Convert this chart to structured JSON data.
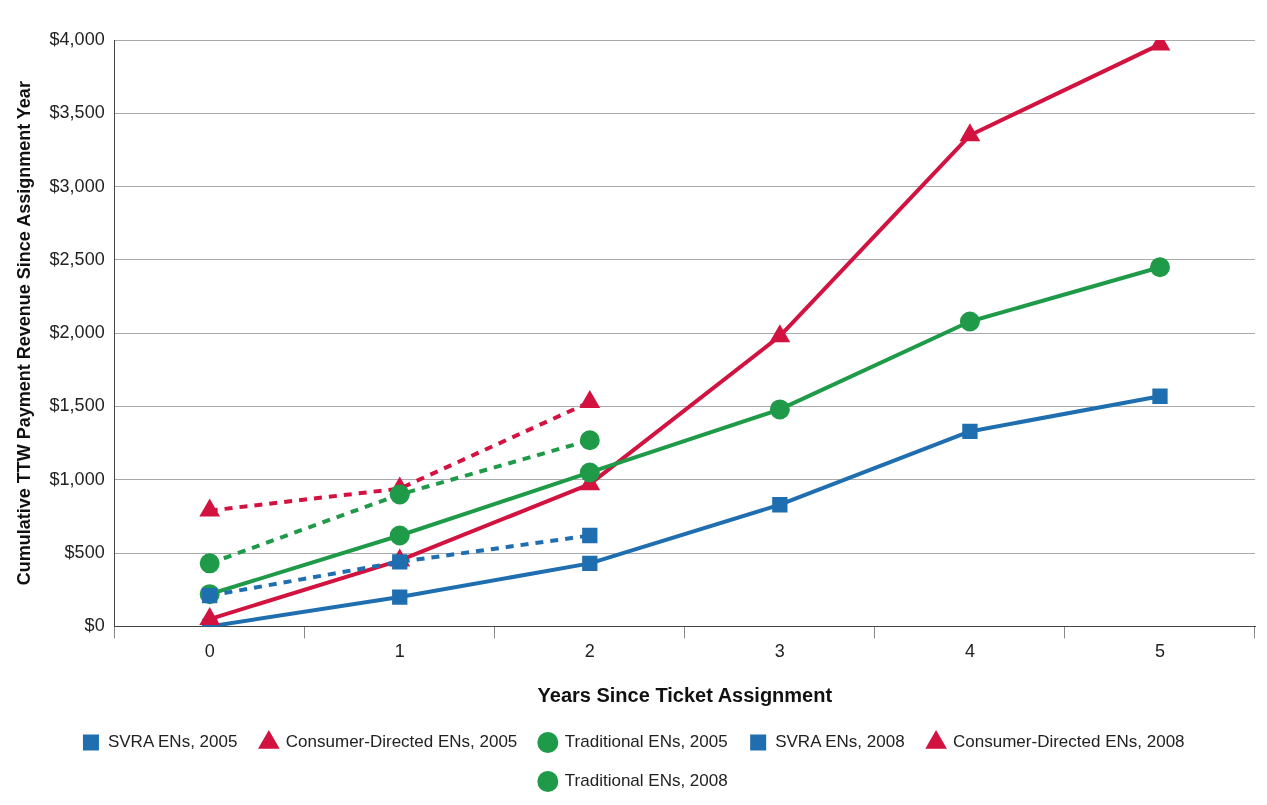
{
  "chart_data": {
    "type": "line",
    "xlabel": "Years Since Ticket Assignment",
    "ylabel": "Cumulative TTW Payment Revenue Since Assignment Year",
    "categories": [
      "0",
      "1",
      "2",
      "3",
      "4",
      "5"
    ],
    "ylim": [
      0,
      4000
    ],
    "yticks": [
      {
        "value": 0,
        "label": "$0"
      },
      {
        "value": 500,
        "label": "$500"
      },
      {
        "value": 1000,
        "label": "$1,000"
      },
      {
        "value": 1500,
        "label": "$1,500"
      },
      {
        "value": 2000,
        "label": "$2,000"
      },
      {
        "value": 2500,
        "label": "$2,500"
      },
      {
        "value": 3000,
        "label": "$3,000"
      },
      {
        "value": 3500,
        "label": "$3,500"
      },
      {
        "value": 4000,
        "label": "$4,000"
      }
    ],
    "grid": "y",
    "legend": "bottom",
    "series": [
      {
        "name": "SVRA ENs, 2005",
        "color": "#1f6eb0",
        "marker": "square",
        "line_style": "solid",
        "values": [
          0,
          200,
          430,
          830,
          1330,
          1570
        ]
      },
      {
        "name": "Consumer-Directed ENs, 2005",
        "color": "#d2123f",
        "marker": "triangle",
        "line_style": "solid",
        "values": [
          50,
          450,
          970,
          1980,
          3350,
          3970
        ]
      },
      {
        "name": "Traditional ENs, 2005",
        "color": "#1f9a48",
        "marker": "circle",
        "line_style": "solid",
        "values": [
          220,
          620,
          1050,
          1480,
          2080,
          2450
        ]
      },
      {
        "name": "SVRA ENs, 2008",
        "color": "#1f6eb0",
        "marker": "square",
        "line_style": "dashed",
        "values": [
          210,
          440,
          620,
          null,
          null,
          null
        ]
      },
      {
        "name": "Consumer-Directed ENs, 2008",
        "color": "#d2123f",
        "marker": "triangle",
        "line_style": "dashed",
        "values": [
          790,
          940,
          1530,
          null,
          null,
          null
        ]
      },
      {
        "name": "Traditional ENs, 2008",
        "color": "#1f9a48",
        "marker": "circle",
        "line_style": "dashed",
        "values": [
          430,
          900,
          1270,
          null,
          null,
          null
        ]
      }
    ]
  }
}
